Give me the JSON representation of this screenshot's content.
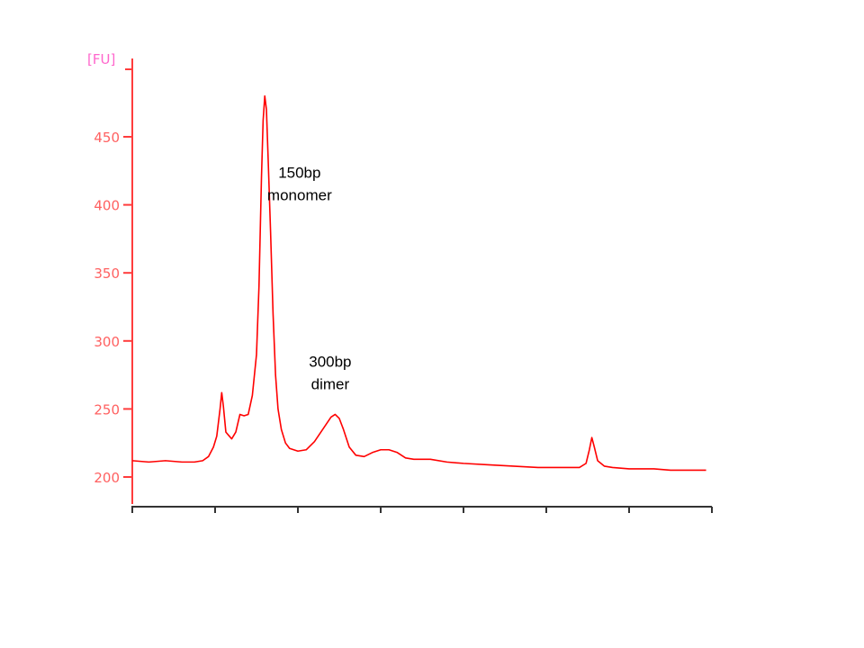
{
  "chart_data": {
    "type": "line",
    "ylabel": "[FU]",
    "y_ticks": [
      200,
      250,
      300,
      350,
      400,
      450
    ],
    "ylim": [
      184,
      510
    ],
    "x_ticks_count": 8,
    "xlim": [
      0,
      7
    ],
    "grid": false,
    "legend": "none",
    "series": [
      {
        "color": "#ff0000",
        "points": [
          [
            0.0,
            212
          ],
          [
            0.2,
            211
          ],
          [
            0.4,
            212
          ],
          [
            0.6,
            211
          ],
          [
            0.75,
            211
          ],
          [
            0.85,
            212
          ],
          [
            0.92,
            215
          ],
          [
            0.98,
            222
          ],
          [
            1.02,
            230
          ],
          [
            1.06,
            250
          ],
          [
            1.08,
            262
          ],
          [
            1.1,
            252
          ],
          [
            1.13,
            233
          ],
          [
            1.2,
            228
          ],
          [
            1.25,
            233
          ],
          [
            1.3,
            246
          ],
          [
            1.35,
            245
          ],
          [
            1.4,
            246
          ],
          [
            1.45,
            260
          ],
          [
            1.5,
            290
          ],
          [
            1.53,
            340
          ],
          [
            1.56,
            420
          ],
          [
            1.58,
            462
          ],
          [
            1.6,
            480
          ],
          [
            1.62,
            470
          ],
          [
            1.64,
            435
          ],
          [
            1.67,
            380
          ],
          [
            1.7,
            320
          ],
          [
            1.73,
            275
          ],
          [
            1.76,
            250
          ],
          [
            1.8,
            235
          ],
          [
            1.85,
            225
          ],
          [
            1.9,
            221
          ],
          [
            2.0,
            219
          ],
          [
            2.1,
            220
          ],
          [
            2.2,
            226
          ],
          [
            2.3,
            235
          ],
          [
            2.4,
            244
          ],
          [
            2.45,
            246
          ],
          [
            2.5,
            243
          ],
          [
            2.55,
            235
          ],
          [
            2.62,
            222
          ],
          [
            2.7,
            216
          ],
          [
            2.8,
            215
          ],
          [
            2.9,
            218
          ],
          [
            3.0,
            220
          ],
          [
            3.1,
            220
          ],
          [
            3.2,
            218
          ],
          [
            3.3,
            214
          ],
          [
            3.4,
            213
          ],
          [
            3.6,
            213
          ],
          [
            3.8,
            211
          ],
          [
            4.0,
            210
          ],
          [
            4.3,
            209
          ],
          [
            4.6,
            208
          ],
          [
            4.9,
            207
          ],
          [
            5.2,
            207
          ],
          [
            5.4,
            207
          ],
          [
            5.48,
            210
          ],
          [
            5.52,
            220
          ],
          [
            5.55,
            229
          ],
          [
            5.58,
            222
          ],
          [
            5.62,
            212
          ],
          [
            5.7,
            208
          ],
          [
            5.8,
            207
          ],
          [
            6.0,
            206
          ],
          [
            6.3,
            206
          ],
          [
            6.5,
            205
          ],
          [
            6.93,
            205
          ]
        ]
      }
    ],
    "annotations": [
      {
        "lines": [
          "150bp",
          "monomer"
        ],
        "anchor": [
          2.02,
          420
        ]
      },
      {
        "lines": [
          "300bp",
          "dimer"
        ],
        "anchor": [
          2.39,
          281
        ]
      }
    ]
  },
  "colors": {
    "axis": "#ff3c3c",
    "y_tick_label": "#ff6161",
    "y_unit_label": "#ff66cc",
    "x_axis": "#333333",
    "trace": "#ff0000",
    "annotation": "#000000"
  }
}
